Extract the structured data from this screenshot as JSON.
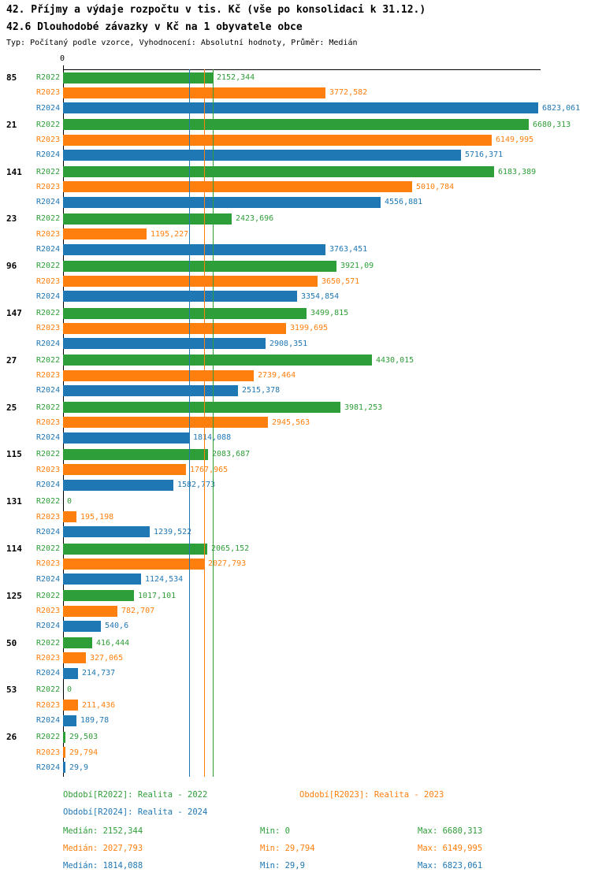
{
  "header": {
    "title": "42. Příjmy a výdaje rozpočtu v tis. Kč (vše po konsolidaci k 31.12.)",
    "subtitle": "42.6 Dlouhodobé závazky v Kč na 1 obyvatele obce",
    "meta": "Typ: Počítaný podle vzorce, Vyhodnocení: Absolutní hodnoty, Průměr: Medián"
  },
  "colors": {
    "r2022": "#2e9e38",
    "r2023": "#ff7f0e",
    "r2024": "#1f77b4",
    "axis": "#000000"
  },
  "chart_data": {
    "type": "bar",
    "orientation": "horizontal",
    "axis_zero_label": "0",
    "xlim": [
      0,
      6900
    ],
    "grid": false,
    "legend_position": "bottom",
    "series_labels": [
      "R2022",
      "R2023",
      "R2024"
    ],
    "series_names": [
      "Realita - 2022",
      "Realita - 2023",
      "Realita - 2024"
    ],
    "medians": {
      "R2022": 2152.344,
      "R2023": 2027.793,
      "R2024": 1814.088
    },
    "groups": [
      {
        "label": "85",
        "values": [
          2152.344,
          3772.582,
          6823.061
        ],
        "display": [
          "2152,344",
          "3772,582",
          "6823,061"
        ]
      },
      {
        "label": "21",
        "values": [
          6680.313,
          6149.995,
          5716.371
        ],
        "display": [
          "6680,313",
          "6149,995",
          "5716,371"
        ]
      },
      {
        "label": "141",
        "values": [
          6183.389,
          5010.784,
          4556.881
        ],
        "display": [
          "6183,389",
          "5010,784",
          "4556,881"
        ]
      },
      {
        "label": "23",
        "values": [
          2423.696,
          1195.227,
          3763.451
        ],
        "display": [
          "2423,696",
          "1195,227",
          "3763,451"
        ]
      },
      {
        "label": "96",
        "values": [
          3921.09,
          3650.571,
          3354.854
        ],
        "display": [
          "3921,09",
          "3650,571",
          "3354,854"
        ]
      },
      {
        "label": "147",
        "values": [
          3499.815,
          3199.695,
          2908.351
        ],
        "display": [
          "3499,815",
          "3199,695",
          "2908,351"
        ]
      },
      {
        "label": "27",
        "values": [
          4430.015,
          2739.464,
          2515.378
        ],
        "display": [
          "4430,015",
          "2739,464",
          "2515,378"
        ]
      },
      {
        "label": "25",
        "values": [
          3981.253,
          2945.563,
          1814.088
        ],
        "display": [
          "3981,253",
          "2945,563",
          "1814,088"
        ]
      },
      {
        "label": "115",
        "values": [
          2083.687,
          1767.965,
          1582.773
        ],
        "display": [
          "2083,687",
          "1767,965",
          "1582,773"
        ]
      },
      {
        "label": "131",
        "values": [
          0,
          195.198,
          1239.522
        ],
        "display": [
          "0",
          "195,198",
          "1239,522"
        ]
      },
      {
        "label": "114",
        "values": [
          2065.152,
          2027.793,
          1124.534
        ],
        "display": [
          "2065,152",
          "2027,793",
          "1124,534"
        ]
      },
      {
        "label": "125",
        "values": [
          1017.101,
          782.707,
          540.6
        ],
        "display": [
          "1017,101",
          "782,707",
          "540,6"
        ]
      },
      {
        "label": "50",
        "values": [
          416.444,
          327.065,
          214.737
        ],
        "display": [
          "416,444",
          "327,065",
          "214,737"
        ]
      },
      {
        "label": "53",
        "values": [
          0,
          211.436,
          189.78
        ],
        "display": [
          "0",
          "211,436",
          "189,78"
        ]
      },
      {
        "label": "26",
        "values": [
          29.503,
          29.794,
          29.9
        ],
        "display": [
          "29,503",
          "29,794",
          "29,9"
        ]
      }
    ]
  },
  "legend": [
    {
      "label": "Období[R2022]: Realita - 2022"
    },
    {
      "label": "Období[R2023]: Realita - 2023"
    },
    {
      "label": "Období[R2024]: Realita - 2024"
    }
  ],
  "stats": [
    {
      "median": "Medián: 2152,344",
      "min": "Min: 0",
      "max": "Max: 6680,313"
    },
    {
      "median": "Medián: 2027,793",
      "min": "Min: 29,794",
      "max": "Max: 6149,995"
    },
    {
      "median": "Medián: 1814,088",
      "min": "Min: 29,9",
      "max": "Max: 6823,061"
    }
  ]
}
